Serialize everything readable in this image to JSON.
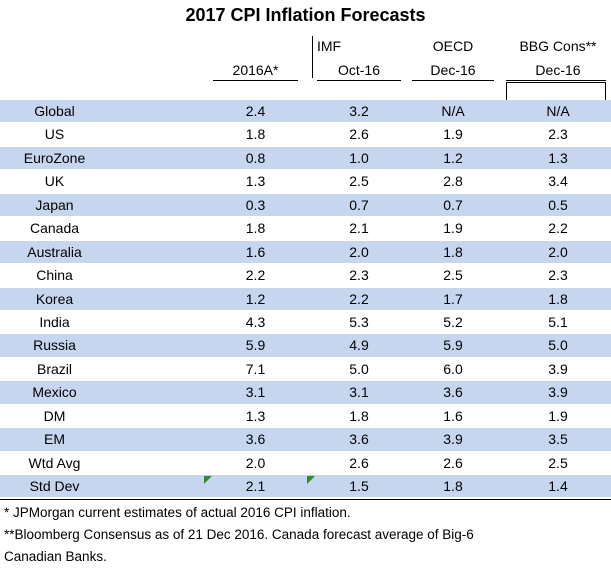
{
  "title": "2017 CPI Inflation Forecasts",
  "header": {
    "group_labels": [
      "IMF",
      "OECD",
      "BBG Cons**"
    ],
    "columns": [
      "2016A*",
      "Oct-16",
      "Dec-16",
      "Dec-16"
    ]
  },
  "rows": [
    {
      "label": "Global",
      "values": [
        "2.4",
        "3.2",
        "N/A",
        "N/A"
      ],
      "shaded": true
    },
    {
      "label": "US",
      "values": [
        "1.8",
        "2.6",
        "1.9",
        "2.3"
      ],
      "shaded": false
    },
    {
      "label": "EuroZone",
      "values": [
        "0.8",
        "1.0",
        "1.2",
        "1.3"
      ],
      "shaded": true
    },
    {
      "label": "UK",
      "values": [
        "1.3",
        "2.5",
        "2.8",
        "3.4"
      ],
      "shaded": false
    },
    {
      "label": "Japan",
      "values": [
        "0.3",
        "0.7",
        "0.7",
        "0.5"
      ],
      "shaded": true
    },
    {
      "label": "Canada",
      "values": [
        "1.8",
        "2.1",
        "1.9",
        "2.2"
      ],
      "shaded": false
    },
    {
      "label": "Australia",
      "values": [
        "1.6",
        "2.0",
        "1.8",
        "2.0"
      ],
      "shaded": true
    },
    {
      "label": "China",
      "values": [
        "2.2",
        "2.3",
        "2.5",
        "2.3"
      ],
      "shaded": false
    },
    {
      "label": "Korea",
      "values": [
        "1.2",
        "2.2",
        "1.7",
        "1.8"
      ],
      "shaded": true
    },
    {
      "label": "India",
      "values": [
        "4.3",
        "5.3",
        "5.2",
        "5.1"
      ],
      "shaded": false
    },
    {
      "label": "Russia",
      "values": [
        "5.9",
        "4.9",
        "5.9",
        "5.0"
      ],
      "shaded": true
    },
    {
      "label": "Brazil",
      "values": [
        "7.1",
        "5.0",
        "6.0",
        "3.9"
      ],
      "shaded": false
    },
    {
      "label": "Mexico",
      "values": [
        "3.1",
        "3.1",
        "3.6",
        "3.9"
      ],
      "shaded": true
    },
    {
      "label": "DM",
      "values": [
        "1.3",
        "1.8",
        "1.6",
        "1.9"
      ],
      "shaded": false
    },
    {
      "label": "EM",
      "values": [
        "3.6",
        "3.6",
        "3.9",
        "3.5"
      ],
      "shaded": true
    },
    {
      "label": "Wtd Avg",
      "values": [
        "2.0",
        "2.6",
        "2.6",
        "2.5"
      ],
      "shaded": false
    },
    {
      "label": "Std Dev",
      "values": [
        "2.1",
        "1.5",
        "1.8",
        "1.4"
      ],
      "shaded": true
    }
  ],
  "footnotes": [
    "*  JPMorgan current estimates of actual 2016 CPI inflation.",
    "**Bloomberg Consensus as of 21 Dec 2016. Canada forecast average of Big-6",
    "Canadian Banks."
  ],
  "colors": {
    "row_shade": "#c6d6ee",
    "flag": "#2e8b2e"
  }
}
